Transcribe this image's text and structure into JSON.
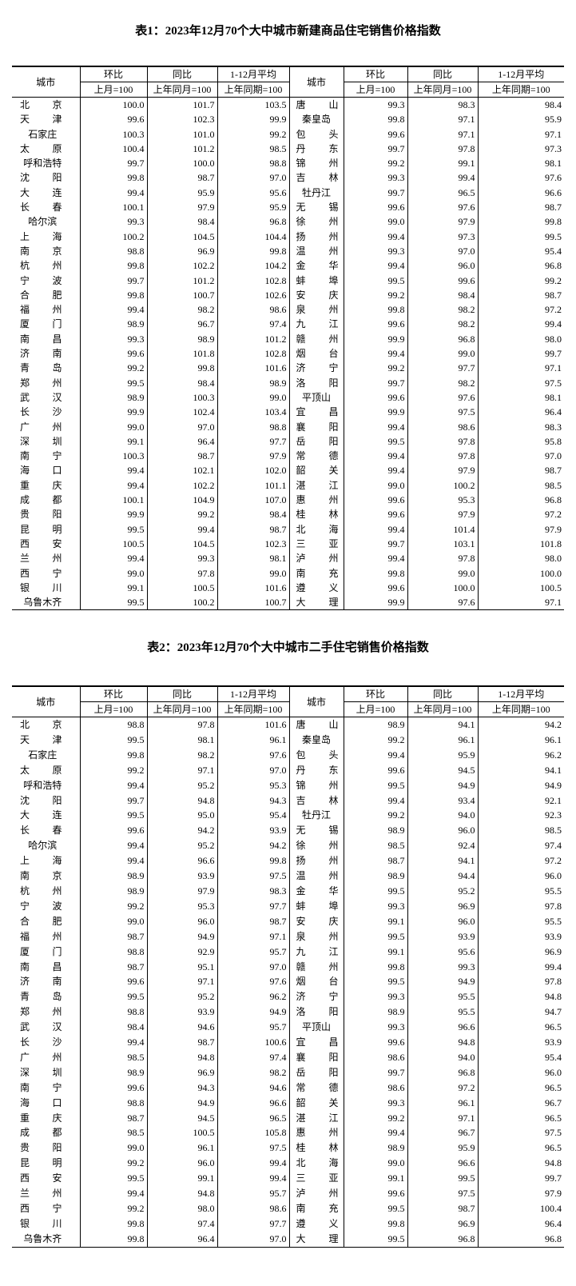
{
  "tables": [
    {
      "title": "表1：2023年12月70个大中城市新建商品住宅销售价格指数",
      "header": {
        "city": "城市",
        "cols": [
          "环比",
          "同比",
          "1-12月平均"
        ],
        "bases": [
          "上月=100",
          "上年同月=100",
          "上年同期=100"
        ]
      },
      "rows": [
        [
          "北京",
          "100.0",
          "101.7",
          "103.5",
          "唐山",
          "99.3",
          "98.3",
          "98.4"
        ],
        [
          "天津",
          "99.6",
          "102.3",
          "99.9",
          "秦皇岛",
          "99.8",
          "97.1",
          "95.9"
        ],
        [
          "石家庄",
          "100.3",
          "101.0",
          "99.2",
          "包头",
          "99.6",
          "97.1",
          "97.1"
        ],
        [
          "太原",
          "100.4",
          "101.2",
          "98.5",
          "丹东",
          "99.7",
          "97.8",
          "97.3"
        ],
        [
          "呼和浩特",
          "99.7",
          "100.0",
          "98.8",
          "锦州",
          "99.2",
          "99.1",
          "98.1"
        ],
        [
          "沈阳",
          "99.8",
          "98.7",
          "97.0",
          "吉林",
          "99.3",
          "99.4",
          "97.6"
        ],
        [
          "大连",
          "99.4",
          "95.9",
          "95.6",
          "牡丹江",
          "99.7",
          "96.5",
          "96.6"
        ],
        [
          "长春",
          "100.1",
          "97.9",
          "95.9",
          "无锡",
          "99.6",
          "97.6",
          "98.7"
        ],
        [
          "哈尔滨",
          "99.3",
          "98.4",
          "96.8",
          "徐州",
          "99.0",
          "97.9",
          "99.8"
        ],
        [
          "上海",
          "100.2",
          "104.5",
          "104.4",
          "扬州",
          "99.4",
          "97.3",
          "99.5"
        ],
        [
          "南京",
          "98.8",
          "96.9",
          "99.8",
          "温州",
          "99.3",
          "97.0",
          "95.4"
        ],
        [
          "杭州",
          "99.8",
          "102.2",
          "104.2",
          "金华",
          "99.4",
          "96.0",
          "96.8"
        ],
        [
          "宁波",
          "99.7",
          "101.2",
          "102.8",
          "蚌埠",
          "99.5",
          "99.6",
          "99.2"
        ],
        [
          "合肥",
          "99.8",
          "100.7",
          "102.6",
          "安庆",
          "99.2",
          "98.4",
          "98.7"
        ],
        [
          "福州",
          "99.4",
          "98.2",
          "98.6",
          "泉州",
          "99.8",
          "98.2",
          "97.2"
        ],
        [
          "厦门",
          "98.9",
          "96.7",
          "97.4",
          "九江",
          "99.6",
          "98.2",
          "99.4"
        ],
        [
          "南昌",
          "99.3",
          "98.9",
          "101.2",
          "赣州",
          "99.9",
          "96.8",
          "98.0"
        ],
        [
          "济南",
          "99.6",
          "101.8",
          "102.8",
          "烟台",
          "99.4",
          "99.0",
          "99.7"
        ],
        [
          "青岛",
          "99.2",
          "99.8",
          "101.6",
          "济宁",
          "99.2",
          "97.7",
          "97.1"
        ],
        [
          "郑州",
          "99.5",
          "98.4",
          "98.9",
          "洛阳",
          "99.7",
          "98.2",
          "97.5"
        ],
        [
          "武汉",
          "98.9",
          "100.3",
          "99.0",
          "平顶山",
          "99.6",
          "97.6",
          "98.1"
        ],
        [
          "长沙",
          "99.9",
          "102.4",
          "103.4",
          "宜昌",
          "99.9",
          "97.5",
          "96.4"
        ],
        [
          "广州",
          "99.0",
          "97.0",
          "98.8",
          "襄阳",
          "99.4",
          "98.6",
          "98.3"
        ],
        [
          "深圳",
          "99.1",
          "96.4",
          "97.7",
          "岳阳",
          "99.5",
          "97.8",
          "95.8"
        ],
        [
          "南宁",
          "100.3",
          "98.7",
          "97.9",
          "常德",
          "99.4",
          "97.8",
          "97.0"
        ],
        [
          "海口",
          "99.4",
          "102.1",
          "102.0",
          "韶关",
          "99.4",
          "97.9",
          "98.7"
        ],
        [
          "重庆",
          "99.4",
          "102.2",
          "101.1",
          "湛江",
          "99.0",
          "100.2",
          "98.5"
        ],
        [
          "成都",
          "100.1",
          "104.9",
          "107.0",
          "惠州",
          "99.6",
          "95.3",
          "96.8"
        ],
        [
          "贵阳",
          "99.9",
          "99.2",
          "98.4",
          "桂林",
          "99.6",
          "97.9",
          "97.2"
        ],
        [
          "昆明",
          "99.5",
          "99.4",
          "98.7",
          "北海",
          "99.4",
          "101.4",
          "97.9"
        ],
        [
          "西安",
          "100.5",
          "104.5",
          "102.3",
          "三亚",
          "99.7",
          "103.1",
          "101.8"
        ],
        [
          "兰州",
          "99.4",
          "99.3",
          "98.1",
          "泸州",
          "99.4",
          "97.8",
          "98.0"
        ],
        [
          "西宁",
          "99.0",
          "97.8",
          "99.0",
          "南充",
          "99.8",
          "99.0",
          "100.0"
        ],
        [
          "银川",
          "99.1",
          "100.5",
          "101.6",
          "遵义",
          "99.6",
          "100.0",
          "100.5"
        ],
        [
          "乌鲁木齐",
          "99.5",
          "100.2",
          "100.7",
          "大理",
          "99.9",
          "97.6",
          "97.1"
        ]
      ]
    },
    {
      "title": "表2：2023年12月70个大中城市二手住宅销售价格指数",
      "header": {
        "city": "城市",
        "cols": [
          "环比",
          "同比",
          "1-12月平均"
        ],
        "bases": [
          "上月=100",
          "上年同月=100",
          "上年同期=100"
        ]
      },
      "rows": [
        [
          "北京",
          "98.8",
          "97.8",
          "101.6",
          "唐山",
          "98.9",
          "94.1",
          "94.2"
        ],
        [
          "天津",
          "99.5",
          "98.1",
          "96.1",
          "秦皇岛",
          "99.2",
          "96.1",
          "96.1"
        ],
        [
          "石家庄",
          "99.8",
          "98.2",
          "97.6",
          "包头",
          "99.4",
          "95.9",
          "96.2"
        ],
        [
          "太原",
          "99.2",
          "97.1",
          "97.0",
          "丹东",
          "99.6",
          "94.5",
          "94.1"
        ],
        [
          "呼和浩特",
          "99.4",
          "95.2",
          "95.3",
          "锦州",
          "99.5",
          "94.9",
          "94.9"
        ],
        [
          "沈阳",
          "99.7",
          "94.8",
          "94.3",
          "吉林",
          "99.4",
          "93.4",
          "92.1"
        ],
        [
          "大连",
          "99.5",
          "95.0",
          "95.4",
          "牡丹江",
          "99.2",
          "94.0",
          "92.3"
        ],
        [
          "长春",
          "99.6",
          "94.2",
          "93.9",
          "无锡",
          "98.9",
          "96.0",
          "98.5"
        ],
        [
          "哈尔滨",
          "99.4",
          "95.2",
          "94.2",
          "徐州",
          "98.5",
          "92.4",
          "97.4"
        ],
        [
          "上海",
          "99.4",
          "96.6",
          "99.8",
          "扬州",
          "98.7",
          "94.1",
          "97.2"
        ],
        [
          "南京",
          "98.9",
          "93.9",
          "97.5",
          "温州",
          "98.9",
          "94.4",
          "96.0"
        ],
        [
          "杭州",
          "98.9",
          "97.9",
          "98.3",
          "金华",
          "99.5",
          "95.2",
          "95.5"
        ],
        [
          "宁波",
          "99.2",
          "95.3",
          "97.7",
          "蚌埠",
          "99.3",
          "96.9",
          "97.8"
        ],
        [
          "合肥",
          "99.0",
          "96.0",
          "98.7",
          "安庆",
          "99.1",
          "96.0",
          "95.5"
        ],
        [
          "福州",
          "98.7",
          "94.9",
          "97.1",
          "泉州",
          "99.5",
          "93.9",
          "93.9"
        ],
        [
          "厦门",
          "98.8",
          "92.9",
          "95.7",
          "九江",
          "99.1",
          "95.6",
          "96.9"
        ],
        [
          "南昌",
          "98.7",
          "95.1",
          "97.0",
          "赣州",
          "99.8",
          "99.3",
          "99.4"
        ],
        [
          "济南",
          "99.6",
          "97.1",
          "97.6",
          "烟台",
          "99.5",
          "94.9",
          "97.8"
        ],
        [
          "青岛",
          "99.5",
          "95.2",
          "96.2",
          "济宁",
          "99.3",
          "95.5",
          "94.8"
        ],
        [
          "郑州",
          "98.8",
          "93.9",
          "94.9",
          "洛阳",
          "98.9",
          "95.5",
          "94.7"
        ],
        [
          "武汉",
          "98.4",
          "94.6",
          "95.7",
          "平顶山",
          "99.3",
          "96.6",
          "96.5"
        ],
        [
          "长沙",
          "99.4",
          "98.7",
          "100.6",
          "宜昌",
          "99.6",
          "94.8",
          "93.9"
        ],
        [
          "广州",
          "98.5",
          "94.8",
          "97.4",
          "襄阳",
          "98.6",
          "94.0",
          "95.4"
        ],
        [
          "深圳",
          "98.9",
          "96.9",
          "98.2",
          "岳阳",
          "99.7",
          "96.8",
          "96.0"
        ],
        [
          "南宁",
          "99.6",
          "94.3",
          "94.6",
          "常德",
          "98.6",
          "97.2",
          "96.5"
        ],
        [
          "海口",
          "98.8",
          "94.9",
          "96.6",
          "韶关",
          "99.3",
          "96.1",
          "96.7"
        ],
        [
          "重庆",
          "98.7",
          "94.5",
          "96.5",
          "湛江",
          "99.2",
          "97.1",
          "96.5"
        ],
        [
          "成都",
          "98.5",
          "100.5",
          "105.8",
          "惠州",
          "99.4",
          "96.7",
          "97.5"
        ],
        [
          "贵阳",
          "99.0",
          "96.1",
          "97.5",
          "桂林",
          "98.9",
          "95.9",
          "96.5"
        ],
        [
          "昆明",
          "99.2",
          "96.0",
          "99.4",
          "北海",
          "99.0",
          "96.6",
          "94.8"
        ],
        [
          "西安",
          "99.5",
          "99.1",
          "99.4",
          "三亚",
          "99.1",
          "99.5",
          "99.7"
        ],
        [
          "兰州",
          "99.4",
          "94.8",
          "95.7",
          "泸州",
          "99.6",
          "97.5",
          "97.9"
        ],
        [
          "西宁",
          "99.2",
          "98.0",
          "98.6",
          "南充",
          "99.5",
          "98.7",
          "100.4"
        ],
        [
          "银川",
          "99.8",
          "97.4",
          "97.7",
          "遵义",
          "99.8",
          "96.9",
          "96.4"
        ],
        [
          "乌鲁木齐",
          "99.8",
          "96.4",
          "97.0",
          "大理",
          "99.5",
          "96.8",
          "96.8"
        ]
      ]
    }
  ]
}
